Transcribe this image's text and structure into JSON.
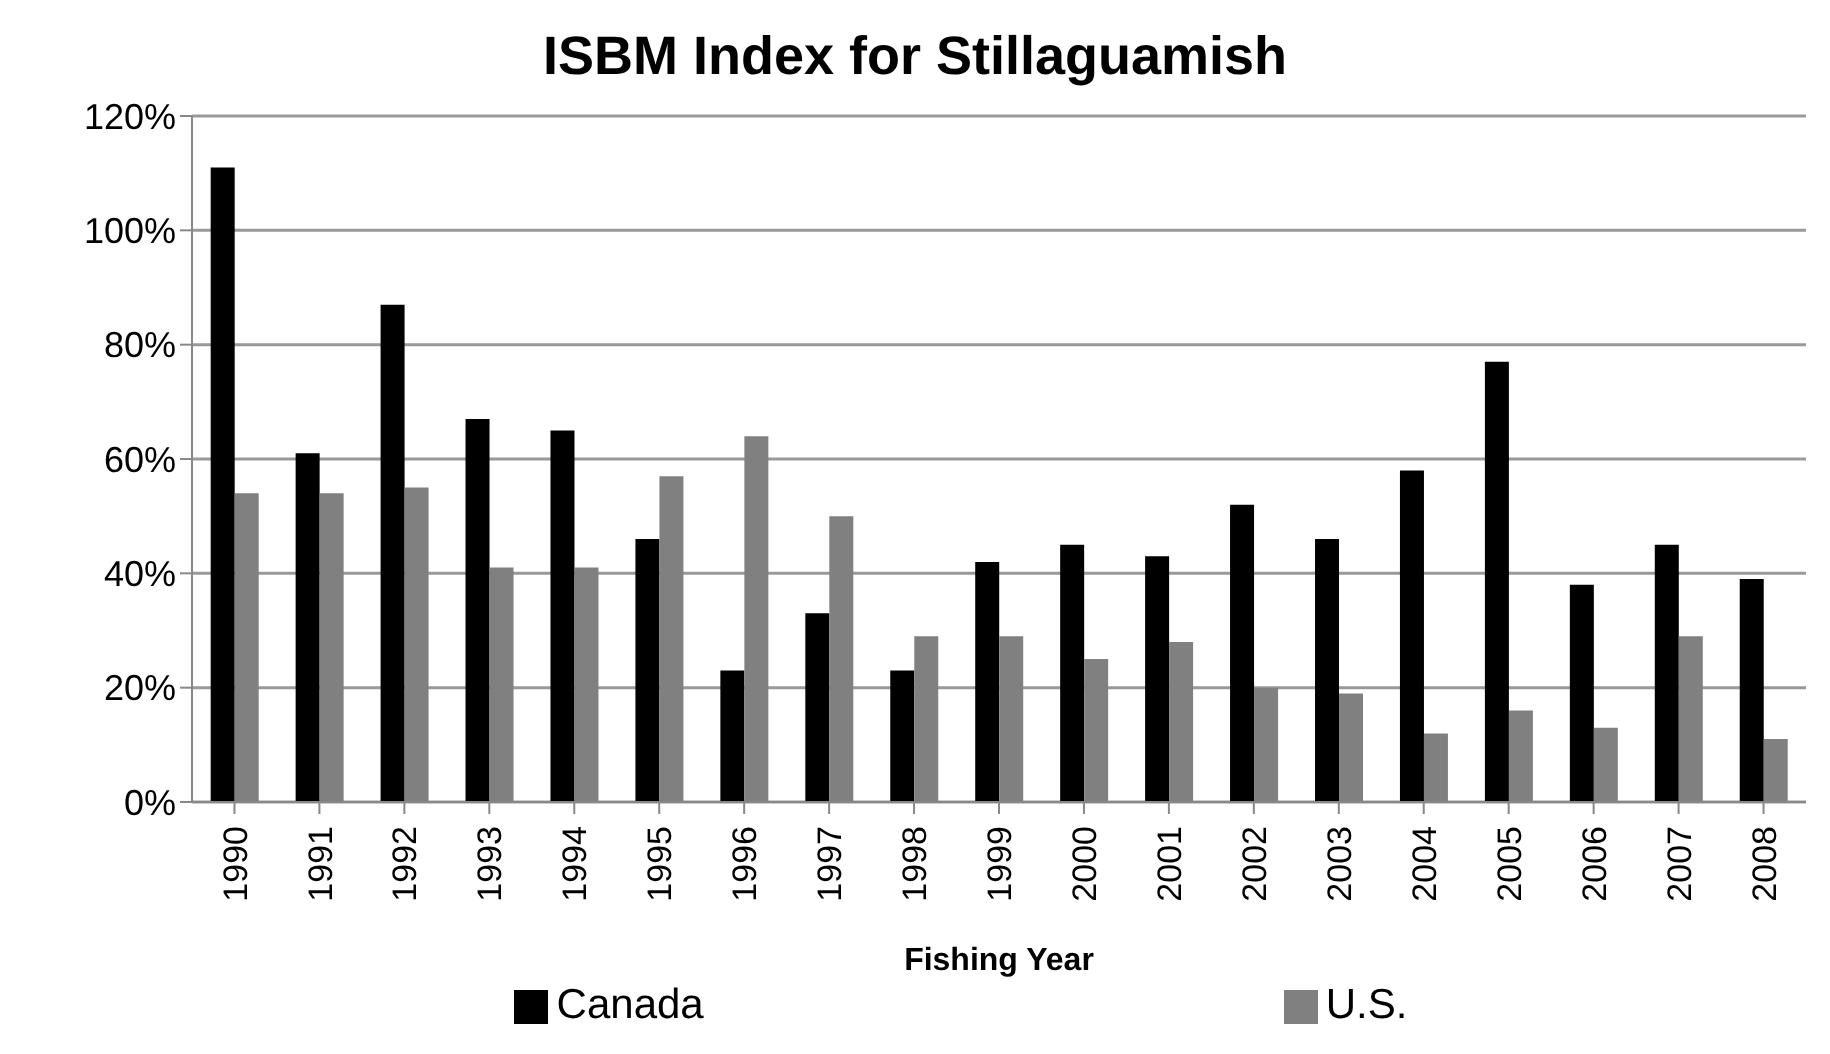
{
  "chart_data": {
    "type": "bar",
    "title": "ISBM Index for Stillaguamish",
    "xlabel": "Fishing Year",
    "categories": [
      "1990",
      "1991",
      "1992",
      "1993",
      "1994",
      "1995",
      "1996",
      "1997",
      "1998",
      "1999",
      "2000",
      "2001",
      "2002",
      "2003",
      "2004",
      "2005",
      "2006",
      "2007",
      "2008"
    ],
    "series": [
      {
        "name": "Canada",
        "color": "#000000",
        "values": [
          111,
          61,
          87,
          67,
          65,
          46,
          23,
          33,
          23,
          42,
          45,
          43,
          52,
          46,
          58,
          77,
          38,
          45,
          39
        ]
      },
      {
        "name": "U.S.",
        "color": "#808080",
        "values": [
          54,
          54,
          55,
          41,
          41,
          57,
          64,
          50,
          29,
          29,
          25,
          28,
          20,
          19,
          12,
          16,
          13,
          29,
          11
        ]
      }
    ],
    "ylim": [
      0,
      120
    ],
    "yticks": [
      {
        "value": 0,
        "label": "0%"
      },
      {
        "value": 20,
        "label": "20%"
      },
      {
        "value": 40,
        "label": "40%"
      },
      {
        "value": 60,
        "label": "60%"
      },
      {
        "value": 80,
        "label": "80%"
      },
      {
        "value": 100,
        "label": "100%"
      },
      {
        "value": 120,
        "label": "120%"
      }
    ],
    "grid": "y",
    "legend": "bottom"
  }
}
